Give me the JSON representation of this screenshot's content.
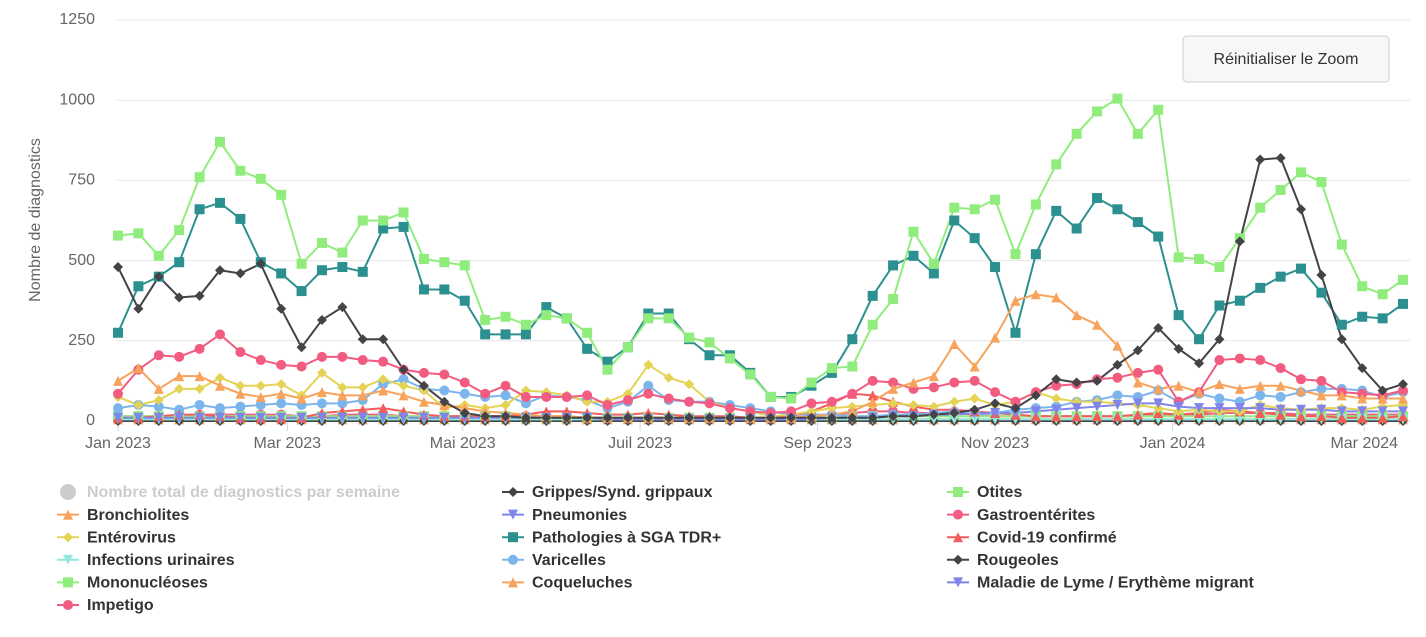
{
  "chart_data": {
    "type": "line",
    "y_label": "Nombre de diagnostics",
    "reset_button": "Réinitialiser le Zoom",
    "x": [
      0,
      1,
      2,
      3,
      4,
      5,
      6,
      7,
      8,
      9,
      10,
      11,
      12,
      13,
      14,
      15,
      16,
      17,
      18,
      19,
      20,
      21,
      22,
      23,
      24,
      25,
      26,
      27,
      28,
      29,
      30,
      31,
      32,
      33,
      34,
      35,
      36,
      37,
      38,
      39,
      40,
      41,
      42,
      43,
      44,
      45,
      46,
      47,
      48,
      49,
      50,
      51,
      52,
      53,
      54,
      55,
      56,
      57,
      58,
      59,
      60,
      61,
      62,
      63
    ],
    "xlim": [
      0,
      63
    ],
    "xticks": [
      {
        "value": 0,
        "label": "Jan 2023"
      },
      {
        "value": 8.3,
        "label": "Mar 2023"
      },
      {
        "value": 16.9,
        "label": "Mai 2023"
      },
      {
        "value": 25.6,
        "label": "Juil 2023"
      },
      {
        "value": 34.3,
        "label": "Sep 2023"
      },
      {
        "value": 43,
        "label": "Nov 2023"
      },
      {
        "value": 51.7,
        "label": "Jan 2024"
      },
      {
        "value": 61.1,
        "label": "Mar 2024"
      }
    ],
    "ylim": [
      0,
      1250
    ],
    "yticks": [
      0,
      250,
      500,
      750,
      1000,
      1250
    ],
    "grid": true,
    "legend": "bottom",
    "hidden_series": {
      "name": "Nombre total de diagnostics par semaine",
      "color": "#cccccc"
    },
    "series": [
      {
        "name": "Grippes/Synd. grippaux",
        "color": "#434348",
        "marker": "diamond",
        "values": [
          480,
          350,
          450,
          385,
          390,
          470,
          460,
          490,
          350,
          230,
          315,
          355,
          255,
          255,
          160,
          110,
          60,
          25,
          15,
          15,
          10,
          10,
          10,
          10,
          10,
          10,
          10,
          10,
          10,
          10,
          10,
          10,
          10,
          10,
          10,
          10,
          10,
          10,
          15,
          15,
          20,
          25,
          35,
          55,
          40,
          80,
          130,
          120,
          125,
          175,
          220,
          290,
          225,
          180,
          255,
          560,
          815,
          820,
          660,
          455,
          255,
          165,
          95,
          115
        ]
      },
      {
        "name": "Otites",
        "color": "#90ed7d",
        "marker": "square",
        "values": [
          578,
          585,
          515,
          595,
          760,
          870,
          780,
          755,
          705,
          490,
          555,
          525,
          625,
          625,
          650,
          505,
          495,
          485,
          315,
          325,
          300,
          330,
          320,
          275,
          160,
          230,
          320,
          320,
          260,
          245,
          195,
          145,
          75,
          70,
          120,
          165,
          170,
          300,
          380,
          590,
          490,
          665,
          660,
          690,
          520,
          675,
          800,
          895,
          965,
          1005,
          895,
          970,
          510,
          505,
          480,
          570,
          665,
          720,
          775,
          745,
          550,
          420,
          395,
          440
        ]
      },
      {
        "name": "Bronchiolites",
        "color": "#f7a35c",
        "marker": "triangle",
        "values": [
          125,
          165,
          100,
          140,
          140,
          110,
          85,
          75,
          85,
          70,
          90,
          80,
          80,
          95,
          80,
          60,
          50,
          40,
          30,
          25,
          20,
          15,
          15,
          10,
          10,
          10,
          10,
          10,
          10,
          10,
          10,
          10,
          10,
          10,
          15,
          20,
          30,
          60,
          100,
          120,
          140,
          240,
          170,
          260,
          375,
          395,
          385,
          330,
          300,
          235,
          120,
          100,
          110,
          90,
          115,
          100,
          110,
          110,
          95,
          80,
          80,
          70,
          70,
          70
        ]
      },
      {
        "name": "Pneumonies",
        "color": "#8085e9",
        "marker": "triangle-down",
        "values": [
          10,
          10,
          10,
          10,
          10,
          10,
          10,
          10,
          10,
          10,
          10,
          10,
          10,
          10,
          10,
          10,
          10,
          10,
          10,
          10,
          10,
          10,
          10,
          10,
          5,
          5,
          5,
          5,
          5,
          5,
          5,
          5,
          5,
          5,
          5,
          10,
          10,
          10,
          15,
          15,
          20,
          20,
          25,
          25,
          25,
          30,
          35,
          40,
          45,
          50,
          55,
          55,
          45,
          40,
          40,
          40,
          40,
          35,
          35,
          35,
          30,
          30,
          30,
          30
        ]
      },
      {
        "name": "Gastroentérites",
        "color": "#f15c80",
        "marker": "circle",
        "values": [
          85,
          160,
          205,
          200,
          225,
          270,
          215,
          190,
          175,
          170,
          200,
          200,
          190,
          185,
          160,
          150,
          145,
          120,
          85,
          110,
          75,
          75,
          75,
          80,
          50,
          65,
          85,
          70,
          60,
          55,
          40,
          30,
          25,
          30,
          55,
          60,
          85,
          125,
          120,
          100,
          105,
          120,
          125,
          90,
          60,
          90,
          110,
          115,
          130,
          135,
          150,
          160,
          60,
          90,
          190,
          195,
          190,
          165,
          130,
          125,
          90,
          85,
          80,
          95
        ]
      },
      {
        "name": "Entérovirus",
        "color": "#e4d354",
        "marker": "diamond",
        "values": [
          75,
          50,
          65,
          100,
          100,
          135,
          110,
          110,
          115,
          80,
          150,
          105,
          105,
          130,
          110,
          95,
          40,
          50,
          40,
          50,
          95,
          90,
          80,
          60,
          60,
          85,
          175,
          135,
          115,
          60,
          40,
          30,
          15,
          20,
          30,
          40,
          45,
          50,
          55,
          50,
          45,
          60,
          70,
          50,
          60,
          90,
          70,
          60,
          60,
          55,
          50,
          40,
          30,
          35,
          30,
          30,
          50,
          40,
          35,
          40,
          40,
          35,
          45,
          50
        ]
      },
      {
        "name": "Pathologies à SGA TDR+",
        "color": "#2b908f",
        "marker": "square",
        "values": [
          275,
          420,
          450,
          495,
          660,
          680,
          630,
          495,
          460,
          405,
          470,
          480,
          465,
          600,
          605,
          410,
          410,
          375,
          270,
          270,
          270,
          355,
          320,
          225,
          185,
          230,
          335,
          335,
          255,
          205,
          205,
          150,
          75,
          75,
          110,
          150,
          255,
          390,
          485,
          515,
          460,
          625,
          570,
          480,
          275,
          520,
          655,
          600,
          695,
          660,
          620,
          575,
          330,
          255,
          360,
          375,
          415,
          450,
          475,
          400,
          300,
          325,
          320,
          365
        ]
      },
      {
        "name": "Covid-19 confirmé",
        "color": "#f45b5b",
        "marker": "triangle",
        "values": [
          10,
          10,
          15,
          20,
          20,
          15,
          10,
          10,
          10,
          10,
          25,
          30,
          35,
          40,
          30,
          20,
          15,
          15,
          15,
          15,
          20,
          30,
          30,
          25,
          20,
          20,
          25,
          20,
          15,
          15,
          15,
          10,
          10,
          15,
          30,
          55,
          85,
          80,
          60,
          45,
          35,
          35,
          30,
          25,
          20,
          15,
          15,
          15,
          15,
          15,
          20,
          25,
          20,
          25,
          35,
          30,
          25,
          20,
          15,
          15,
          10,
          10,
          10,
          15
        ]
      },
      {
        "name": "Infections urinaires",
        "color": "#91e8e1",
        "marker": "triangle-down",
        "values": [
          5,
          5,
          5,
          5,
          5,
          5,
          5,
          5,
          5,
          5,
          5,
          5,
          5,
          5,
          5,
          5,
          5,
          5,
          5,
          5,
          5,
          5,
          5,
          5,
          5,
          5,
          5,
          5,
          5,
          5,
          5,
          5,
          5,
          5,
          5,
          5,
          5,
          5,
          5,
          5,
          5,
          5,
          5,
          5,
          5,
          5,
          5,
          5,
          5,
          5,
          5,
          5,
          5,
          5,
          5,
          5,
          5,
          5,
          5,
          5,
          5,
          5,
          5,
          5
        ]
      },
      {
        "name": "Varicelles",
        "color": "#7cb5ec",
        "marker": "circle",
        "values": [
          40,
          50,
          45,
          35,
          50,
          40,
          45,
          50,
          55,
          50,
          55,
          55,
          65,
          115,
          130,
          100,
          95,
          85,
          75,
          80,
          55,
          80,
          75,
          65,
          40,
          60,
          110,
          65,
          60,
          60,
          50,
          40,
          30,
          20,
          20,
          20,
          15,
          15,
          20,
          20,
          25,
          30,
          20,
          25,
          35,
          40,
          45,
          60,
          65,
          80,
          75,
          95,
          60,
          85,
          70,
          60,
          80,
          75,
          90,
          100,
          100,
          95,
          75,
          90
        ]
      },
      {
        "name": "Rougeoles",
        "color": "#434348",
        "marker": "diamond",
        "values": [
          0,
          0,
          0,
          0,
          0,
          0,
          0,
          0,
          0,
          0,
          0,
          0,
          0,
          0,
          0,
          0,
          0,
          0,
          0,
          0,
          0,
          0,
          0,
          0,
          0,
          0,
          0,
          0,
          0,
          0,
          0,
          0,
          0,
          0,
          0,
          0,
          0,
          0,
          0,
          0,
          0,
          0,
          0,
          0,
          0,
          0,
          0,
          0,
          0,
          0,
          0,
          0,
          0,
          0,
          0,
          0,
          0,
          0,
          0,
          0,
          0,
          0,
          0,
          0
        ]
      },
      {
        "name": "Mononucléoses",
        "color": "#90ed7d",
        "marker": "square",
        "values": [
          15,
          15,
          15,
          15,
          15,
          15,
          15,
          15,
          15,
          15,
          15,
          15,
          15,
          15,
          15,
          15,
          15,
          15,
          15,
          15,
          10,
          10,
          10,
          10,
          10,
          10,
          10,
          10,
          10,
          10,
          10,
          10,
          10,
          10,
          10,
          10,
          15,
          15,
          15,
          15,
          15,
          15,
          15,
          15,
          15,
          15,
          15,
          15,
          15,
          15,
          15,
          15,
          15,
          15,
          15,
          15,
          15,
          15,
          15,
          15,
          15,
          15,
          15,
          15
        ]
      },
      {
        "name": "Coqueluches",
        "color": "#f7a35c",
        "marker": "triangle",
        "values": [
          5,
          5,
          5,
          5,
          5,
          5,
          5,
          5,
          5,
          5,
          5,
          5,
          5,
          5,
          5,
          5,
          5,
          5,
          5,
          5,
          5,
          5,
          5,
          5,
          5,
          5,
          5,
          5,
          5,
          5,
          5,
          5,
          5,
          5,
          5,
          5,
          5,
          5,
          5,
          5,
          5,
          5,
          5,
          5,
          5,
          5,
          5,
          5,
          5,
          5,
          5,
          5,
          5,
          5,
          5,
          5,
          5,
          5,
          5,
          5,
          5,
          5,
          5,
          5
        ]
      },
      {
        "name": "Maladie de Lyme / Erythème migrant",
        "color": "#8085e9",
        "marker": "triangle-down",
        "values": [
          5,
          5,
          5,
          5,
          5,
          5,
          5,
          5,
          5,
          5,
          5,
          5,
          5,
          5,
          5,
          5,
          5,
          5,
          5,
          5,
          5,
          5,
          5,
          5,
          5,
          5,
          5,
          5,
          5,
          5,
          5,
          5,
          5,
          5,
          5,
          5,
          5,
          5,
          5,
          5,
          5,
          5,
          5,
          5,
          5,
          5,
          5,
          5,
          5,
          5,
          5,
          5,
          5,
          5,
          5,
          5,
          5,
          5,
          5,
          5,
          5,
          5,
          5,
          5
        ]
      },
      {
        "name": "Impetigo",
        "color": "#f15c80",
        "marker": "circle",
        "values": [
          15,
          15,
          15,
          15,
          20,
          20,
          20,
          20,
          20,
          15,
          15,
          20,
          20,
          20,
          15,
          15,
          15,
          15,
          15,
          15,
          15,
          15,
          15,
          10,
          10,
          10,
          10,
          10,
          10,
          10,
          10,
          10,
          10,
          10,
          15,
          20,
          25,
          30,
          30,
          25,
          25,
          25,
          20,
          15,
          15,
          15,
          15,
          15,
          15,
          15,
          15,
          20,
          15,
          20,
          25,
          25,
          25,
          25,
          20,
          20,
          20,
          20,
          20,
          20
        ]
      }
    ]
  }
}
